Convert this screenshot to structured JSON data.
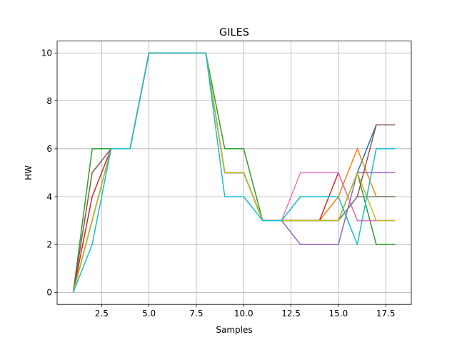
{
  "chart_data": {
    "type": "line",
    "title": "GILES",
    "xlabel": "Samples",
    "ylabel": "HW",
    "xlim": [
      0.15,
      18.85
    ],
    "ylim": [
      -0.5,
      10.5
    ],
    "xticks": [
      2.5,
      5.0,
      7.5,
      10.0,
      12.5,
      15.0,
      17.5
    ],
    "xtick_labels": [
      "2.5",
      "5.0",
      "7.5",
      "10.0",
      "12.5",
      "15.0",
      "17.5"
    ],
    "yticks": [
      0,
      2,
      4,
      6,
      8,
      10
    ],
    "ytick_labels": [
      "0",
      "2",
      "4",
      "6",
      "8",
      "10"
    ],
    "grid": true,
    "x": [
      1,
      2,
      3,
      4,
      5,
      6,
      7,
      8,
      9,
      10,
      11,
      12,
      13,
      14,
      15,
      16,
      17,
      18
    ],
    "series": [
      {
        "color": "#1f77b4",
        "values": [
          0,
          3,
          6,
          6,
          10,
          10,
          10,
          10,
          5,
          5,
          3,
          3,
          3,
          3,
          3,
          5,
          7,
          7
        ]
      },
      {
        "color": "#ff7f0e",
        "values": [
          0,
          3,
          6,
          6,
          10,
          10,
          10,
          10,
          5,
          5,
          3,
          3,
          3,
          3,
          4,
          6,
          4,
          4
        ]
      },
      {
        "color": "#2ca02c",
        "values": [
          0,
          6,
          6,
          6,
          10,
          10,
          10,
          10,
          6,
          6,
          3,
          3,
          3,
          3,
          3,
          5,
          2,
          2
        ]
      },
      {
        "color": "#d62728",
        "values": [
          0,
          4,
          6,
          6,
          10,
          10,
          10,
          10,
          5,
          5,
          3,
          3,
          3,
          3,
          5,
          3,
          3,
          3
        ]
      },
      {
        "color": "#9467bd",
        "values": [
          0,
          3,
          6,
          6,
          10,
          10,
          10,
          10,
          5,
          5,
          3,
          3,
          2,
          2,
          2,
          5,
          5,
          5
        ]
      },
      {
        "color": "#8c564b",
        "values": [
          0,
          5,
          6,
          6,
          10,
          10,
          10,
          10,
          5,
          5,
          3,
          3,
          3,
          3,
          3,
          4,
          7,
          7
        ]
      },
      {
        "color": "#e377c2",
        "values": [
          0,
          3,
          6,
          6,
          10,
          10,
          10,
          10,
          5,
          5,
          3,
          3,
          5,
          5,
          5,
          3,
          3,
          3
        ]
      },
      {
        "color": "#7f7f7f",
        "values": [
          0,
          3,
          6,
          6,
          10,
          10,
          10,
          10,
          5,
          5,
          3,
          3,
          3,
          3,
          3,
          4,
          4,
          4
        ]
      },
      {
        "color": "#bcbd22",
        "values": [
          0,
          3,
          6,
          6,
          10,
          10,
          10,
          10,
          5,
          5,
          3,
          3,
          3,
          3,
          3,
          5,
          3,
          3
        ]
      },
      {
        "color": "#17becf",
        "values": [
          0,
          2,
          6,
          6,
          10,
          10,
          10,
          10,
          4,
          4,
          3,
          3,
          4,
          4,
          4,
          2,
          6,
          6
        ]
      }
    ]
  }
}
